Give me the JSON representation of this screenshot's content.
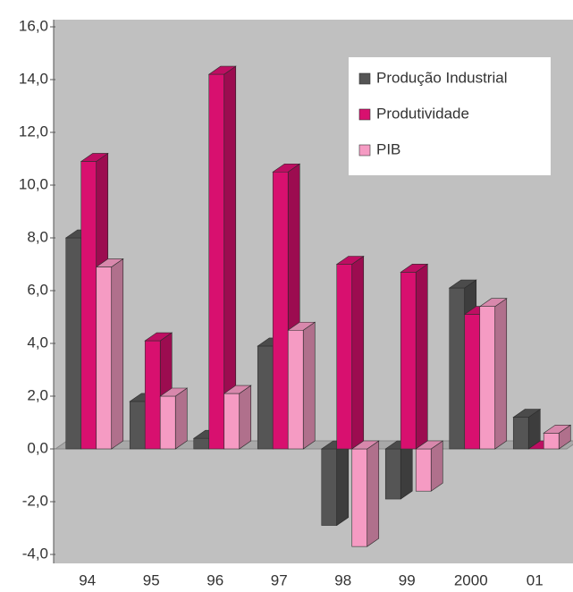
{
  "chart_data": {
    "type": "bar3d",
    "categories": [
      "94",
      "95",
      "96",
      "97",
      "98",
      "99",
      "2000",
      "01"
    ],
    "series": [
      {
        "name": "Produção Industrial",
        "color": "#555555",
        "values": [
          8.0,
          1.8,
          0.4,
          3.9,
          -2.9,
          -1.9,
          6.1,
          1.2
        ]
      },
      {
        "name": "Produtividade",
        "color": "#d8106f",
        "values": [
          10.9,
          4.1,
          14.2,
          10.5,
          7.0,
          6.7,
          5.1,
          0
        ]
      },
      {
        "name": "PIB",
        "color": "#f59bc3",
        "values": [
          6.9,
          2.0,
          2.1,
          4.5,
          -3.7,
          -1.6,
          5.4,
          0.6
        ]
      }
    ],
    "ylim": [
      -4,
      16
    ],
    "yticks": [
      {
        "value": -4,
        "label": "-4,0"
      },
      {
        "value": -2,
        "label": "-2,0"
      },
      {
        "value": 0,
        "label": "0,0"
      },
      {
        "value": 2,
        "label": "2,0"
      },
      {
        "value": 4,
        "label": "4,0"
      },
      {
        "value": 6,
        "label": "6,0"
      },
      {
        "value": 8,
        "label": "8,0"
      },
      {
        "value": 10,
        "label": "10,0"
      },
      {
        "value": 12,
        "label": "12,0"
      },
      {
        "value": 14,
        "label": "14,0"
      },
      {
        "value": 16,
        "label": "16,0"
      }
    ],
    "legend": "top-right"
  }
}
